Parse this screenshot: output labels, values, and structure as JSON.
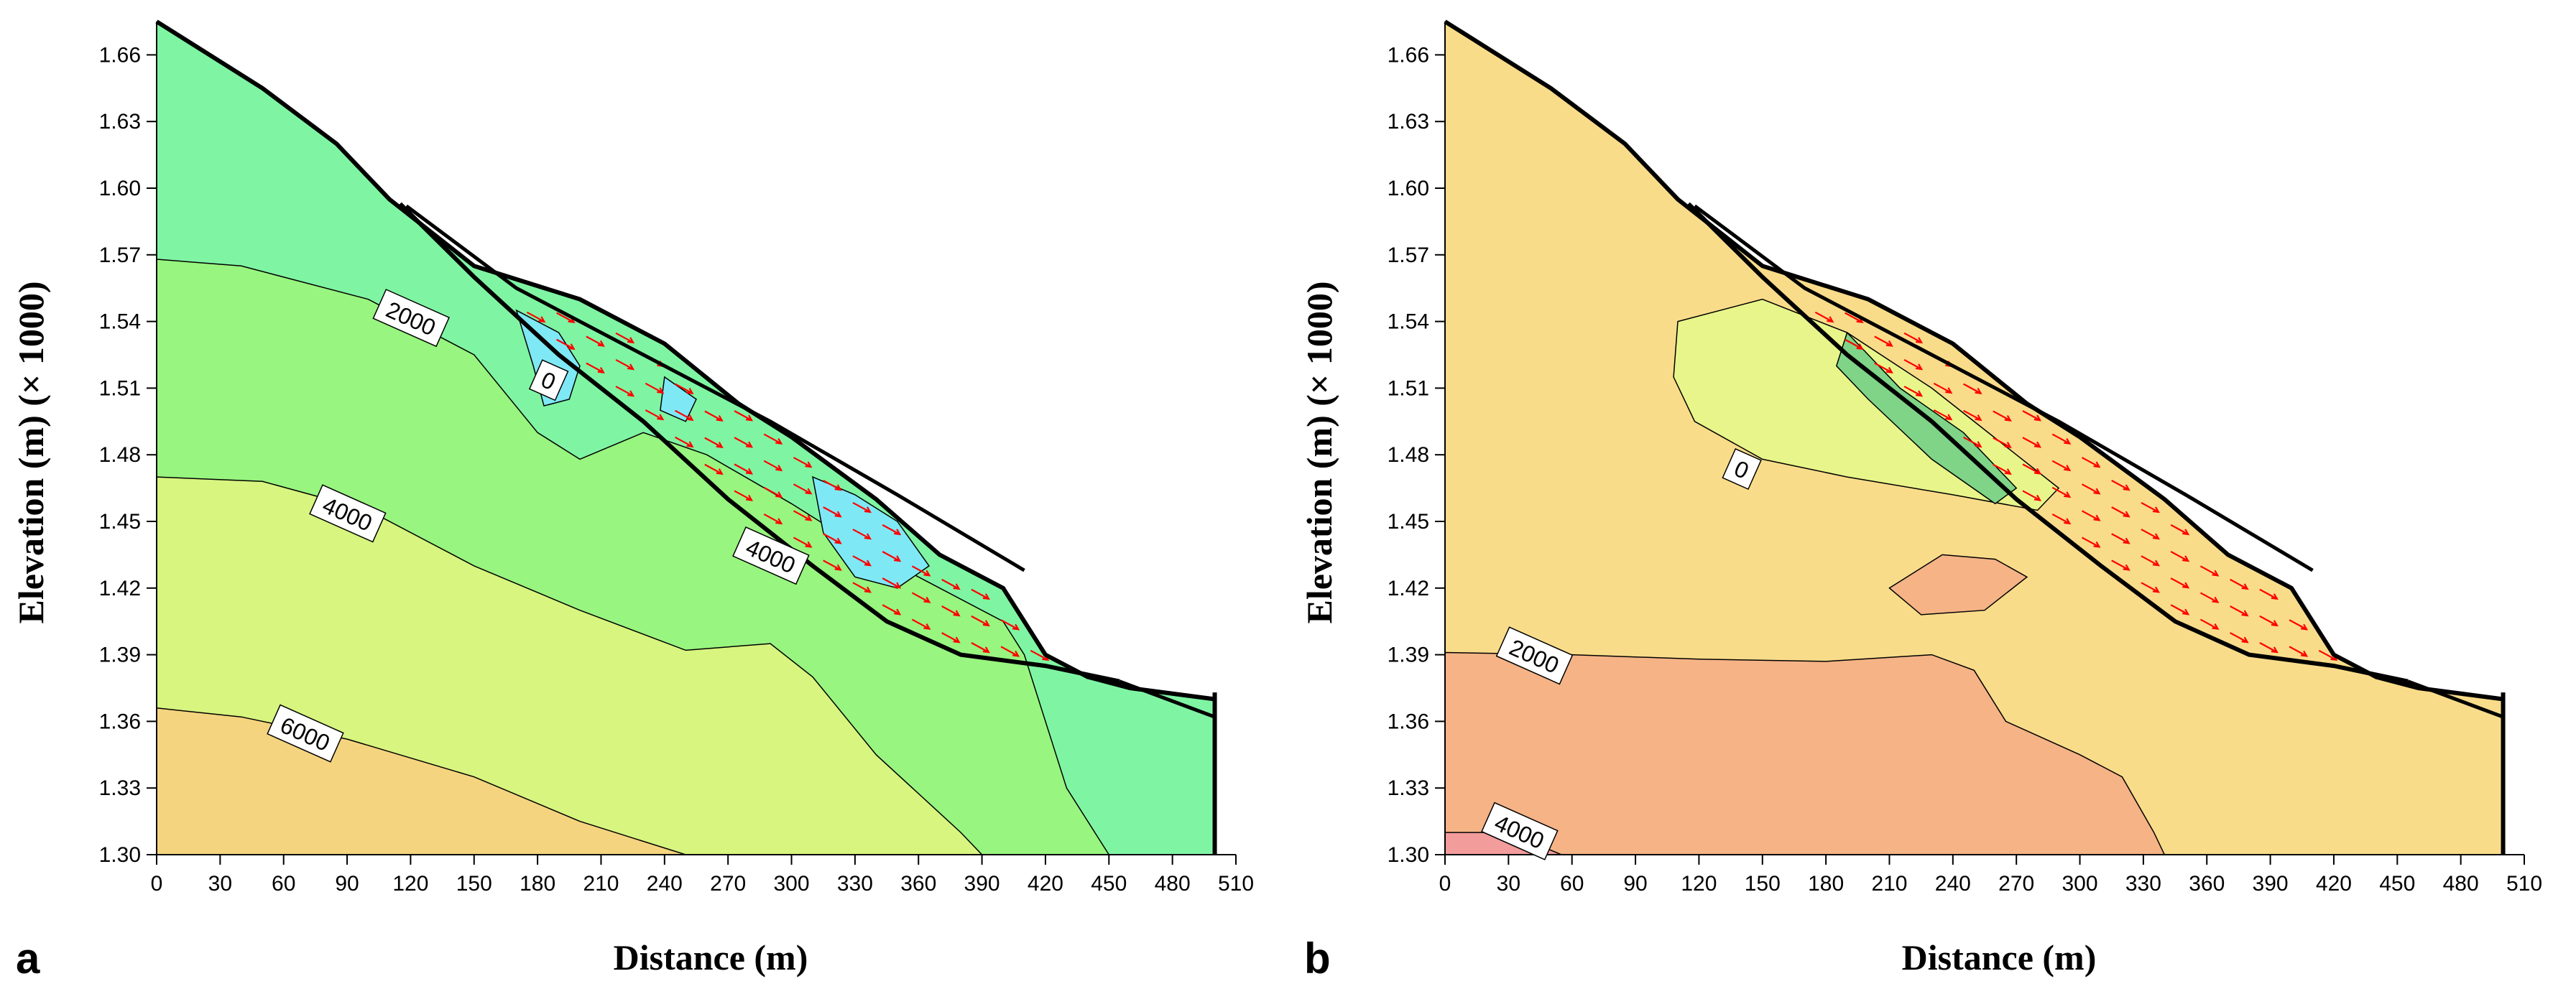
{
  "chart_data": [
    {
      "type": "contour",
      "panel_label": "a",
      "xlabel": "Distance (m)",
      "ylabel": "Elevation (m) (× 1000)",
      "xlim": [
        0,
        510
      ],
      "ylim": [
        1.3,
        1.675
      ],
      "x_ticks": [
        "0",
        "30",
        "60",
        "90",
        "120",
        "150",
        "180",
        "210",
        "240",
        "270",
        "300",
        "330",
        "360",
        "390",
        "420",
        "450",
        "480",
        "510"
      ],
      "y_ticks": [
        "1.30",
        "1.33",
        "1.36",
        "1.39",
        "1.42",
        "1.45",
        "1.48",
        "1.51",
        "1.54",
        "1.57",
        "1.60",
        "1.63",
        "1.66"
      ],
      "contour_labels": [
        {
          "text": "2000",
          "x": 120,
          "y": 1.541
        },
        {
          "text": "0",
          "x": 185,
          "y": 1.513
        },
        {
          "text": "4000",
          "x": 90,
          "y": 1.453
        },
        {
          "text": "4000",
          "x": 290,
          "y": 1.434
        },
        {
          "text": "6000",
          "x": 70,
          "y": 1.354
        }
      ],
      "fill_colors": [
        "#7ff5a3",
        "#98f57f",
        "#d7f57f",
        "#f5d47f",
        "#f5b27f",
        "#7fe8f5"
      ],
      "vector_color": "#ff0000",
      "outline_color": "#000000",
      "ground_surface": [
        [
          0,
          1.675
        ],
        [
          50,
          1.645
        ],
        [
          85,
          1.62
        ],
        [
          110,
          1.595
        ],
        [
          150,
          1.565
        ],
        [
          200,
          1.55
        ],
        [
          240,
          1.53
        ],
        [
          275,
          1.503
        ],
        [
          300,
          1.488
        ],
        [
          340,
          1.46
        ],
        [
          370,
          1.435
        ],
        [
          400,
          1.42
        ],
        [
          420,
          1.39
        ],
        [
          440,
          1.38
        ],
        [
          460,
          1.375
        ],
        [
          500,
          1.37
        ]
      ],
      "sliding_surface": [
        [
          115,
          1.593
        ],
        [
          150,
          1.56
        ],
        [
          190,
          1.525
        ],
        [
          230,
          1.495
        ],
        [
          270,
          1.46
        ],
        [
          310,
          1.43
        ],
        [
          345,
          1.405
        ],
        [
          380,
          1.39
        ],
        [
          420,
          1.385
        ],
        [
          455,
          1.378
        ]
      ]
    },
    {
      "type": "contour",
      "panel_label": "b",
      "xlabel": "Distance (m)",
      "ylabel": "Elevation (m) (× 1000)",
      "xlim": [
        0,
        510
      ],
      "ylim": [
        1.3,
        1.675
      ],
      "x_ticks": [
        "0",
        "30",
        "60",
        "90",
        "120",
        "150",
        "180",
        "210",
        "240",
        "270",
        "300",
        "330",
        "360",
        "390",
        "420",
        "450",
        "480",
        "510"
      ],
      "y_ticks": [
        "1.30",
        "1.33",
        "1.36",
        "1.39",
        "1.42",
        "1.45",
        "1.48",
        "1.51",
        "1.54",
        "1.57",
        "1.60",
        "1.63",
        "1.66"
      ],
      "contour_labels": [
        {
          "text": "0",
          "x": 140,
          "y": 1.473
        },
        {
          "text": "2000",
          "x": 42,
          "y": 1.389
        },
        {
          "text": "4000",
          "x": 35,
          "y": 1.31
        }
      ],
      "fill_colors": [
        "#f9dc8a",
        "#e8f58a",
        "#f5b386",
        "#f29c9c",
        "#7fd488"
      ],
      "vector_color": "#ff0000",
      "outline_color": "#000000",
      "ground_surface": [
        [
          0,
          1.675
        ],
        [
          50,
          1.645
        ],
        [
          85,
          1.62
        ],
        [
          110,
          1.595
        ],
        [
          150,
          1.565
        ],
        [
          200,
          1.55
        ],
        [
          240,
          1.53
        ],
        [
          275,
          1.503
        ],
        [
          300,
          1.488
        ],
        [
          340,
          1.46
        ],
        [
          370,
          1.435
        ],
        [
          400,
          1.42
        ],
        [
          420,
          1.39
        ],
        [
          440,
          1.38
        ],
        [
          460,
          1.375
        ],
        [
          500,
          1.37
        ]
      ],
      "sliding_surface": [
        [
          115,
          1.593
        ],
        [
          150,
          1.56
        ],
        [
          190,
          1.525
        ],
        [
          230,
          1.495
        ],
        [
          270,
          1.46
        ],
        [
          310,
          1.43
        ],
        [
          345,
          1.405
        ],
        [
          380,
          1.39
        ],
        [
          420,
          1.385
        ],
        [
          455,
          1.378
        ]
      ]
    }
  ]
}
